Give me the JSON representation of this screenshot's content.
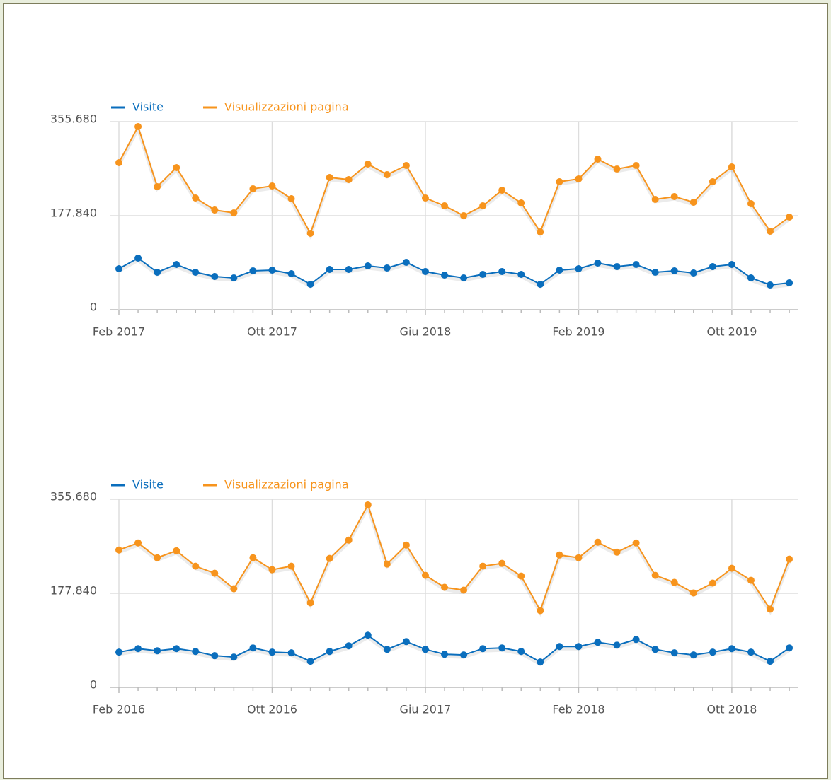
{
  "chart_data": [
    {
      "type": "line",
      "categories": [
        "Feb 2017",
        null,
        null,
        null,
        null,
        null,
        null,
        null,
        "Ott 2017",
        null,
        null,
        null,
        null,
        null,
        null,
        null,
        "Giu 2018",
        null,
        null,
        null,
        null,
        null,
        null,
        null,
        "Feb 2019",
        null,
        null,
        null,
        null,
        null,
        null,
        null,
        "Ott 2019",
        null,
        null,
        null
      ],
      "series": [
        {
          "name": "Visite",
          "color": "#0a6ebd",
          "values": [
            77560,
            97610,
            70870,
            85580,
            70870,
            62850,
            60170,
            73540,
            74880,
            68200,
            48140,
            76220,
            76220,
            82900,
            78890,
            89590,
            72200,
            65520,
            60170,
            66860,
            72200,
            66860,
            48140,
            74880,
            77560,
            88250,
            81570,
            85580,
            70870,
            73540,
            69530,
            81570,
            85580,
            60170,
            46800,
            50810
          ]
        },
        {
          "name": "Visualizzazioni pagina",
          "color": "#f7941d",
          "values": [
            278130,
            346320,
            232660,
            268760,
            211270,
            188530,
            183190,
            228650,
            234000,
            209930,
            144410,
            250050,
            246030,
            275450,
            255390,
            272780,
            211270,
            196560,
            177840,
            196560,
            225980,
            201910,
            147080,
            242020,
            247370,
            284810,
            266090,
            272780,
            208600,
            213940,
            203250,
            242020,
            270100,
            200570,
            148420,
            175170
          ]
        }
      ],
      "ylim": [
        0,
        355680
      ],
      "yticks": [
        0,
        {
          "value": 177840,
          "label": "177.840"
        },
        {
          "value": 355680,
          "label": "355.680"
        }
      ],
      "grid": true
    },
    {
      "type": "line",
      "categories": [
        "Feb 2016",
        null,
        null,
        null,
        null,
        null,
        null,
        null,
        "Ott 2016",
        null,
        null,
        null,
        null,
        null,
        null,
        null,
        "Giu 2017",
        null,
        null,
        null,
        null,
        null,
        null,
        null,
        "Feb 2018",
        null,
        null,
        null,
        null,
        null,
        null,
        null,
        "Ott 2018",
        null,
        null,
        null
      ],
      "series": [
        {
          "name": "Visite",
          "color": "#0a6ebd",
          "values": [
            66610,
            73270,
            69270,
            73270,
            67940,
            59950,
            57280,
            74600,
            66610,
            65270,
            49290,
            67940,
            78600,
            98580,
            71940,
            86590,
            71940,
            62610,
            61280,
            73270,
            74600,
            67940,
            47960,
            77270,
            77270,
            85260,
            79930,
            90590,
            71940,
            65270,
            61280,
            66610,
            73270,
            66610,
            49290,
            74600
          ]
        },
        {
          "name": "Visualizzazioni pagina",
          "color": "#f7941d",
          "values": [
            259760,
            273080,
            245110,
            258430,
            229130,
            215810,
            186500,
            245110,
            222470,
            229130,
            159860,
            243780,
            278420,
            345020,
            233120,
            269090,
            211810,
            189160,
            183830,
            229130,
            234460,
            210480,
            145200,
            250440,
            245110,
            274420,
            255770,
            273080,
            211810,
            198490,
            178500,
            197160,
            225130,
            202480,
            147870,
            242450
          ]
        }
      ],
      "ylim": [
        0,
        355680
      ],
      "yticks": [
        0,
        {
          "value": 177840,
          "label": "177.840"
        },
        {
          "value": 355680,
          "label": "355.680"
        }
      ],
      "grid": true
    }
  ]
}
